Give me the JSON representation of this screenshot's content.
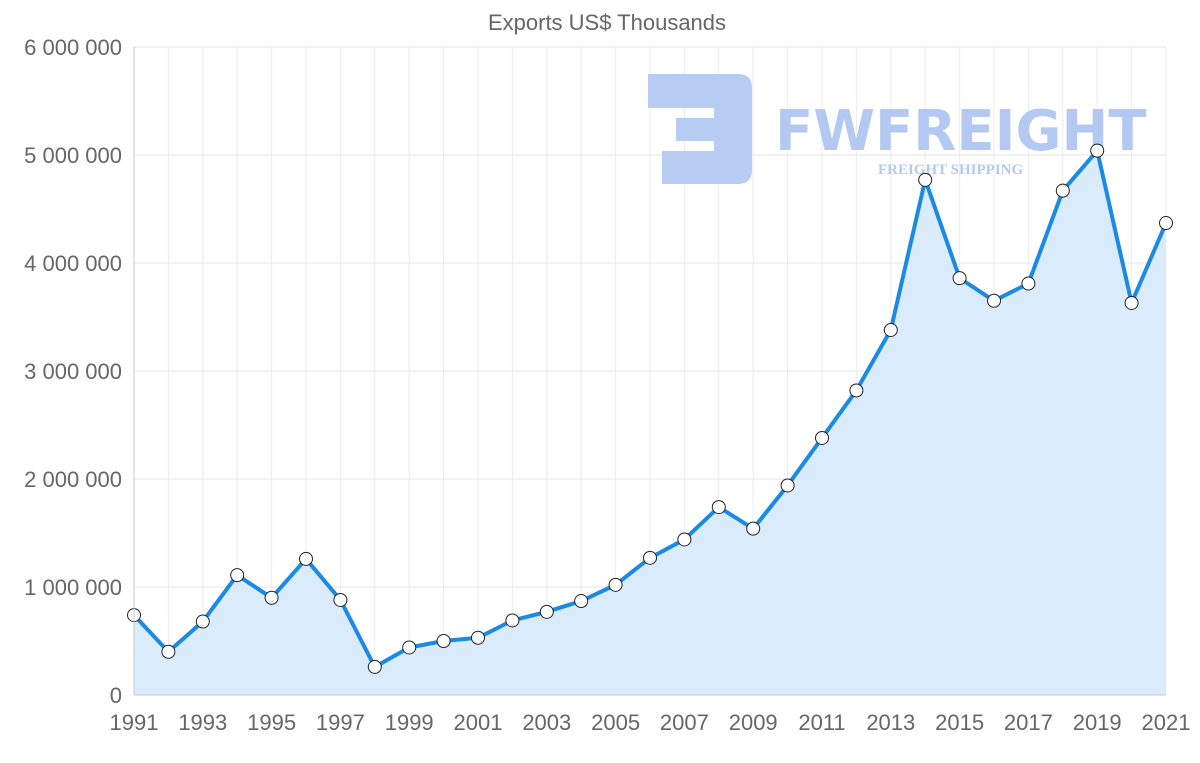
{
  "chart_data": {
    "type": "line",
    "title": "Exports US$ Thousands",
    "xlabel": "",
    "ylabel": "",
    "x": [
      1991,
      1992,
      1993,
      1994,
      1995,
      1996,
      1997,
      1998,
      1999,
      2000,
      2001,
      2002,
      2003,
      2004,
      2005,
      2006,
      2007,
      2008,
      2009,
      2010,
      2011,
      2012,
      2013,
      2014,
      2015,
      2016,
      2017,
      2018,
      2019,
      2020,
      2021
    ],
    "x_tick_labels": [
      "1991",
      "1993",
      "1995",
      "1997",
      "1999",
      "2001",
      "2003",
      "2005",
      "2007",
      "2009",
      "2011",
      "2013",
      "2015",
      "2017",
      "2019",
      "2021"
    ],
    "series": [
      {
        "name": "Exports US$ Thousands",
        "values": [
          740000,
          400000,
          680000,
          1110000,
          900000,
          1260000,
          880000,
          260000,
          440000,
          500000,
          530000,
          690000,
          770000,
          870000,
          1020000,
          1270000,
          1440000,
          1740000,
          1540000,
          1940000,
          2380000,
          2820000,
          3380000,
          4770000,
          3860000,
          3650000,
          3810000,
          4670000,
          5040000,
          3630000,
          4370000
        ],
        "color": "#1a8ae5",
        "fill_color": "#daecfb"
      }
    ],
    "ylim": [
      0,
      6000000
    ],
    "y_ticks": [
      0,
      1000000,
      2000000,
      3000000,
      4000000,
      5000000,
      6000000
    ],
    "y_tick_labels": [
      "0",
      "1 000 000",
      "2 000 000",
      "3 000 000",
      "4 000 000",
      "5 000 000",
      "6 000 000"
    ],
    "grid": true,
    "legend": "none"
  },
  "watermark": {
    "brand": "FWFREIGHT",
    "tagline": "FREIGHT SHIPPING",
    "color": "#b3c9f2"
  }
}
